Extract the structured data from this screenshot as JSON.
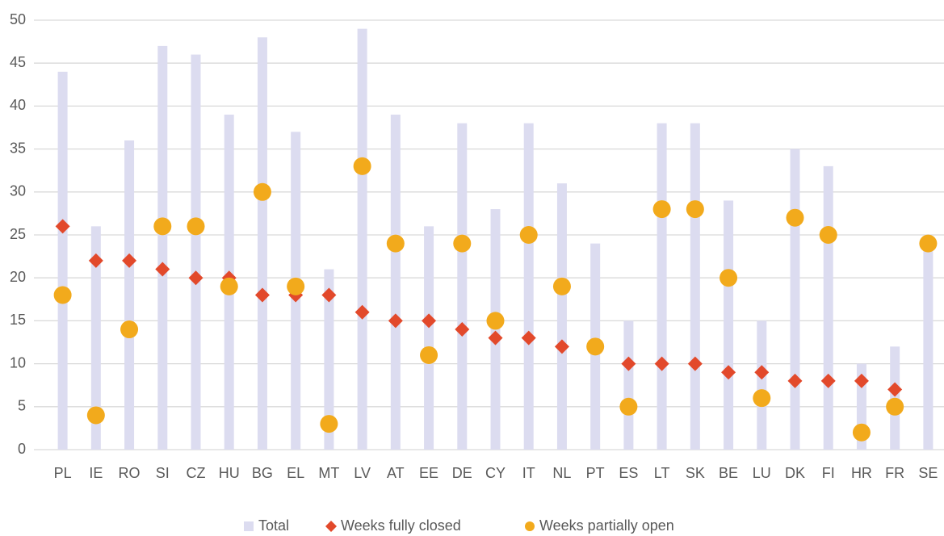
{
  "chart_data": {
    "type": "bar_scatter",
    "categories": [
      "PL",
      "IE",
      "RO",
      "SI",
      "CZ",
      "HU",
      "BG",
      "EL",
      "MT",
      "LV",
      "AT",
      "EE",
      "DE",
      "CY",
      "IT",
      "NL",
      "PT",
      "ES",
      "LT",
      "SK",
      "BE",
      "LU",
      "DK",
      "FI",
      "HR",
      "FR",
      "SE"
    ],
    "series": [
      {
        "name": "Total",
        "type": "bar",
        "color": "#dcdcf0",
        "values": [
          44,
          26,
          36,
          47,
          46,
          39,
          48,
          37,
          21,
          49,
          39,
          26,
          38,
          28,
          38,
          31,
          24,
          15,
          38,
          38,
          29,
          15,
          35,
          33,
          10,
          12,
          24
        ]
      },
      {
        "name": "Weeks fully closed",
        "type": "diamond",
        "color": "#e2492b",
        "values": [
          26,
          22,
          22,
          21,
          20,
          20,
          18,
          18,
          18,
          16,
          15,
          15,
          14,
          13,
          13,
          12,
          12,
          10,
          10,
          10,
          9,
          9,
          8,
          8,
          8,
          7,
          null
        ]
      },
      {
        "name": "Weeks partially open",
        "type": "circle",
        "color": "#f2aa1c",
        "values": [
          18,
          4,
          14,
          26,
          26,
          19,
          30,
          19,
          3,
          33,
          24,
          11,
          24,
          15,
          25,
          19,
          12,
          5,
          28,
          28,
          20,
          6,
          27,
          25,
          2,
          5,
          24
        ]
      }
    ],
    "ylim": [
      0,
      50
    ],
    "yticks": [
      0,
      5,
      10,
      15,
      20,
      25,
      30,
      35,
      40,
      45,
      50
    ],
    "grid": true
  }
}
